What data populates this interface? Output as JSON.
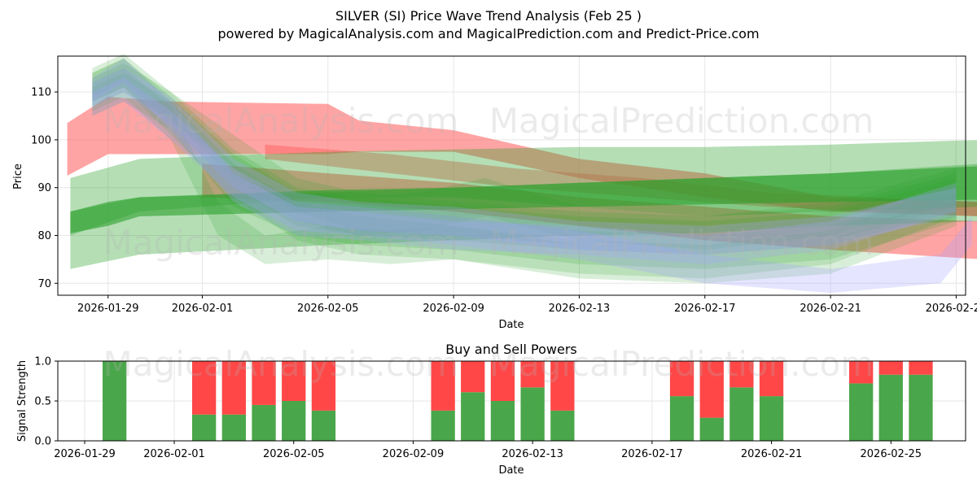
{
  "header": {
    "title": "SILVER (SI) Price Wave Trend Analysis (Feb 25 )",
    "subtitle": "powered by MagicalAnalysis.com and MagicalPrediction.com and Predict-Price.com"
  },
  "watermarks": {
    "analysis": "MagicalAnalysis.com",
    "prediction": "MagicalPrediction.com"
  },
  "colors": {
    "green": "#2ca02c",
    "red": "#ff5a5a",
    "blue": "#a0a0ff",
    "buy": "#4aa64a",
    "sell": "#ff4747",
    "grid": "#e6e6e6"
  },
  "chart_data": [
    {
      "type": "area",
      "title": "",
      "xlabel": "Date",
      "ylabel": "Price",
      "x_start": "2026-01-28",
      "ylim": [
        67.5,
        117.5
      ],
      "xlim_days": [
        -0.6,
        28.3
      ],
      "xticks": [
        {
          "day": 1,
          "label": "2026-01-29"
        },
        {
          "day": 4,
          "label": "2026-02-01"
        },
        {
          "day": 8,
          "label": "2026-02-05"
        },
        {
          "day": 12,
          "label": "2026-02-09"
        },
        {
          "day": 16,
          "label": "2026-02-13"
        },
        {
          "day": 20,
          "label": "2026-02-17"
        },
        {
          "day": 24,
          "label": "2026-02-21"
        },
        {
          "day": 28,
          "label": "2026-02-25"
        }
      ],
      "yticks": [
        70,
        80,
        90,
        100,
        110
      ],
      "grid": true,
      "bands": [
        {
          "name": "red-wave",
          "color": "red",
          "opacity": 0.55,
          "x": [
            -0.3,
            1,
            3,
            8,
            9,
            12,
            16,
            20,
            24,
            28.8
          ],
          "lo": [
            92.5,
            97,
            97,
            97,
            97.5,
            97.5,
            92,
            88,
            85,
            84
          ],
          "hi": [
            103.5,
            109,
            108,
            107.5,
            104,
            102,
            96,
            93,
            88,
            87
          ]
        },
        {
          "name": "red-wave-low",
          "color": "red",
          "opacity": 0.55,
          "x": [
            4,
            8,
            12,
            16,
            20,
            24,
            28.8
          ],
          "lo": [
            88,
            87,
            85,
            82,
            79,
            77,
            75
          ],
          "hi": [
            95,
            93,
            91,
            88,
            86,
            84,
            83
          ]
        },
        {
          "name": "red-wave-mid",
          "color": "red",
          "opacity": 0.45,
          "x": [
            6,
            10,
            14,
            18,
            22,
            28.8
          ],
          "lo": [
            96,
            93,
            90,
            88,
            86,
            84
          ],
          "hi": [
            99,
            97,
            94,
            92,
            89,
            87
          ]
        },
        {
          "name": "green-wide-1",
          "color": "green",
          "opacity": 0.35,
          "x": [
            -0.2,
            2,
            8,
            12,
            16,
            20,
            24,
            28.8
          ],
          "lo": [
            80,
            85,
            88,
            88,
            86,
            84,
            85,
            86
          ],
          "hi": [
            92,
            96,
            97.5,
            98,
            98.5,
            98.5,
            99,
            100
          ]
        },
        {
          "name": "green-wide-2",
          "color": "green",
          "opacity": 0.35,
          "x": [
            -0.2,
            2,
            8,
            12,
            16,
            20,
            24,
            28.8
          ],
          "lo": [
            73,
            76,
            78,
            79,
            80,
            80.5,
            82,
            83
          ],
          "hi": [
            85,
            88,
            89,
            90,
            91,
            92,
            93,
            95
          ]
        },
        {
          "name": "green-narrow",
          "color": "green",
          "opacity": 0.6,
          "x": [
            -0.2,
            1,
            2,
            8,
            12,
            16,
            20,
            24,
            28.8
          ],
          "lo": [
            80.5,
            82,
            84,
            85,
            85.5,
            86,
            86.5,
            87,
            87.5
          ],
          "hi": [
            85,
            87,
            88,
            89.5,
            90,
            91,
            92,
            93,
            94.5
          ]
        },
        {
          "name": "green-ghost-1",
          "color": "green",
          "opacity": 0.18,
          "x": [
            0.5,
            1.5,
            3,
            5,
            7,
            9,
            12,
            16,
            20,
            24,
            28
          ],
          "lo": [
            108,
            111,
            101,
            88,
            79,
            76,
            75,
            72,
            71,
            74,
            84
          ],
          "hi": [
            114,
            117,
            108,
            95,
            87,
            84,
            82,
            79,
            78,
            81,
            91
          ]
        },
        {
          "name": "green-ghost-2",
          "color": "green",
          "opacity": 0.18,
          "x": [
            0.5,
            1.5,
            3,
            5,
            7,
            9,
            12,
            16,
            20,
            24,
            28
          ],
          "lo": [
            107,
            110,
            104,
            92,
            83,
            80,
            79,
            77,
            76,
            78,
            85
          ],
          "hi": [
            113,
            116,
            110,
            98,
            90,
            88,
            86,
            84,
            83,
            85,
            92
          ]
        },
        {
          "name": "green-ghost-3",
          "color": "green",
          "opacity": 0.18,
          "x": [
            0.5,
            1.5,
            3,
            4.5,
            6,
            8,
            10,
            12,
            14,
            16,
            20,
            24,
            28
          ],
          "lo": [
            106,
            109,
            100,
            80,
            74,
            75,
            74,
            75,
            73,
            71,
            70,
            72,
            82
          ],
          "hi": [
            112,
            115,
            107,
            87,
            80,
            82,
            81,
            82,
            80,
            78,
            77,
            79,
            89
          ]
        },
        {
          "name": "green-ghost-4",
          "color": "green",
          "opacity": 0.18,
          "x": [
            0.5,
            1.5,
            3,
            5,
            7,
            9,
            11,
            13,
            16,
            20,
            24,
            28
          ],
          "lo": [
            108,
            111,
            103,
            90,
            82,
            80,
            81,
            84,
            79,
            77,
            79,
            86
          ],
          "hi": [
            114,
            117,
            109,
            97,
            89,
            88,
            89,
            92,
            86,
            84,
            86,
            93
          ]
        },
        {
          "name": "green-ghost-5",
          "color": "green",
          "opacity": 0.18,
          "x": [
            0.5,
            1.5,
            3,
            5,
            7,
            9,
            12,
            16,
            20,
            24,
            28
          ],
          "lo": [
            105,
            108,
            102,
            86,
            80,
            78,
            77,
            74,
            73,
            75,
            83
          ],
          "hi": [
            111,
            114,
            108,
            93,
            87,
            86,
            84,
            81,
            80,
            82,
            90
          ]
        },
        {
          "name": "green-ghost-6",
          "color": "green",
          "opacity": 0.18,
          "x": [
            0.5,
            1.5,
            3,
            5,
            7,
            9,
            12,
            16,
            20,
            24,
            28
          ],
          "lo": [
            109,
            112,
            104,
            94,
            85,
            81,
            80,
            78,
            77,
            80,
            87
          ],
          "hi": [
            115,
            118,
            110,
            101,
            92,
            89,
            87,
            85,
            84,
            87,
            94
          ]
        },
        {
          "name": "blue-ghost-1",
          "color": "blue",
          "opacity": 0.28,
          "x": [
            0.5,
            1.5,
            3,
            5,
            7,
            9,
            12,
            16,
            20,
            24,
            27.5,
            28.5
          ],
          "lo": [
            105,
            108,
            100,
            88,
            81,
            80,
            78,
            75,
            70,
            68,
            70,
            78
          ],
          "hi": [
            110,
            113,
            106,
            94,
            87,
            86,
            84,
            81,
            76,
            73,
            76,
            84
          ]
        },
        {
          "name": "blue-ghost-2",
          "color": "blue",
          "opacity": 0.28,
          "x": [
            0.5,
            1.5,
            3,
            5,
            7,
            9,
            12,
            16,
            20,
            24,
            28
          ],
          "lo": [
            107,
            110,
            103,
            90,
            83,
            81,
            80,
            77,
            76,
            78,
            84
          ],
          "hi": [
            112,
            115,
            109,
            96,
            89,
            87,
            86,
            83,
            82,
            84,
            90
          ]
        },
        {
          "name": "blue-ghost-3",
          "color": "blue",
          "opacity": 0.28,
          "x": [
            0.5,
            1.5,
            3,
            5,
            7,
            9,
            12,
            16,
            20,
            24,
            28
          ],
          "lo": [
            108,
            112,
            102,
            87,
            80,
            79,
            77,
            76,
            74,
            77,
            85
          ],
          "hi": [
            113,
            117,
            108,
            93,
            86,
            85,
            83,
            82,
            80,
            83,
            91
          ]
        }
      ]
    },
    {
      "type": "bar",
      "title": "Buy and Sell Powers",
      "xlabel": "Date",
      "ylabel": "Signal Strength",
      "x_start": "2026-01-28",
      "xlim_days": [
        -0.9,
        29.5
      ],
      "ylim": [
        0,
        1
      ],
      "yticks": [
        0.0,
        0.5,
        1.0
      ],
      "ytick_labels": [
        "0.0",
        "0.5",
        "1.0"
      ],
      "xticks": [
        {
          "day": 0,
          "label": "2026-01-29"
        },
        {
          "day": 3,
          "label": "2026-02-01"
        },
        {
          "day": 7,
          "label": "2026-02-05"
        },
        {
          "day": 11,
          "label": "2026-02-09"
        },
        {
          "day": 15,
          "label": "2026-02-13"
        },
        {
          "day": 19,
          "label": "2026-02-17"
        },
        {
          "day": 23,
          "label": "2026-02-21"
        },
        {
          "day": 27,
          "label": "2026-02-25"
        }
      ],
      "grid": true,
      "series": [
        {
          "name": "Buy",
          "color": "buy"
        },
        {
          "name": "Sell",
          "color": "sell"
        }
      ],
      "days": [
        1,
        4,
        5,
        6,
        7,
        8,
        12,
        13,
        14,
        15,
        16,
        20,
        21,
        22,
        23,
        26,
        27,
        28
      ],
      "buy": [
        1.0,
        0.33,
        0.33,
        0.45,
        0.5,
        0.38,
        0.38,
        0.61,
        0.5,
        0.67,
        0.38,
        0.56,
        0.29,
        0.67,
        0.56,
        0.72,
        0.83,
        0.83
      ],
      "sell": [
        0.0,
        0.67,
        0.67,
        0.55,
        0.5,
        0.62,
        0.62,
        0.39,
        0.5,
        0.33,
        0.62,
        0.44,
        0.71,
        0.33,
        0.44,
        0.28,
        0.17,
        0.17
      ]
    }
  ]
}
